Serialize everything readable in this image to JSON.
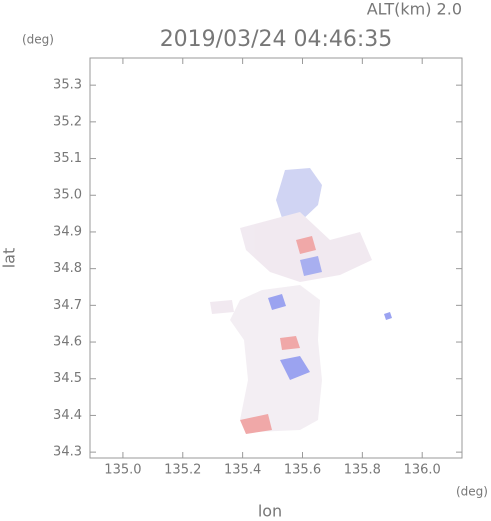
{
  "chart_data": {
    "type": "map",
    "title": "2019/03/24 04:46:35",
    "altitude_label": "ALT(km) 2.0",
    "y_unit": "(deg)",
    "x_unit": "(deg)",
    "xlabel": "lon",
    "ylabel": "lat",
    "xlim": [
      134.89,
      136.133
    ],
    "ylim": [
      34.284,
      35.374
    ],
    "xticks": [
      {
        "value": 135,
        "label": "135.0"
      },
      135.2,
      135.4,
      135.6,
      135.8,
      {
        "value": 136,
        "label": "136.0"
      }
    ],
    "yticks": [
      34.3,
      34.4,
      34.5,
      34.6,
      34.7,
      34.8,
      34.9,
      {
        "value": 35,
        "label": "35.0"
      },
      35.1,
      35.2,
      35.3
    ]
  }
}
